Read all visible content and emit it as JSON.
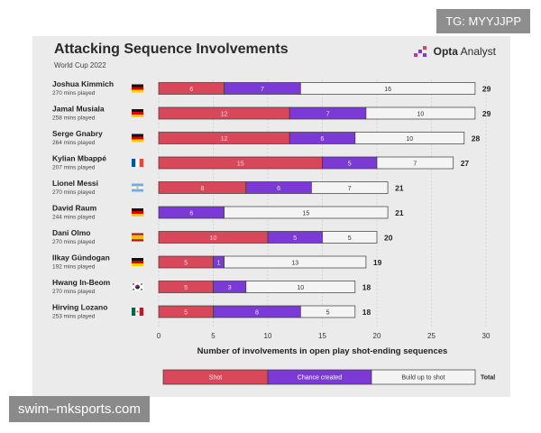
{
  "header": {
    "title": "Attacking Sequence Involvements",
    "subtitle": "World Cup 2022",
    "logo_bold": "Opta",
    "logo_text": " Analyst"
  },
  "watermarks": {
    "telegram": "TG: MYYJJPP",
    "site": "swim–mksports.com"
  },
  "chart_data": {
    "type": "bar",
    "orientation": "horizontal",
    "stacked": true,
    "title": "Attacking Sequence Involvements",
    "subtitle": "World Cup 2022",
    "xlabel": "Number of involvements in open play shot-ending sequences",
    "xlim": [
      0,
      30
    ],
    "xticks": [
      0,
      5,
      10,
      15,
      20,
      25,
      30
    ],
    "grid": true,
    "legend_position": "bottom",
    "legend_total_label": "Total",
    "categories": [
      "Joshua Kimmich",
      "Jamal Musiala",
      "Serge Gnabry",
      "Kylian Mbappé",
      "Lionel Messi",
      "David Raum",
      "Dani Olmo",
      "Ilkay Gündogan",
      "Hwang In-Beom",
      "Hirving Lozano"
    ],
    "minutes": [
      "270 mins played",
      "258 mins played",
      "264 mins played",
      "207 mins played",
      "270 mins played",
      "244 mins played",
      "270 mins played",
      "192 mins played",
      "270 mins played",
      "253 mins played"
    ],
    "flags": [
      "germany",
      "germany",
      "germany",
      "france",
      "argentina",
      "germany",
      "spain",
      "germany",
      "south-korea",
      "mexico"
    ],
    "totals": [
      29,
      29,
      28,
      27,
      21,
      21,
      20,
      19,
      18,
      18
    ],
    "series": [
      {
        "name": "Shot",
        "color": "#d9475a",
        "values": [
          6,
          12,
          12,
          15,
          8,
          0,
          10,
          5,
          5,
          5
        ]
      },
      {
        "name": "Chance created",
        "color": "#7b3ad6",
        "values": [
          7,
          7,
          6,
          5,
          6,
          6,
          5,
          1,
          3,
          8
        ]
      },
      {
        "name": "Build up to shot",
        "color": "#f4f4f4",
        "values": [
          16,
          10,
          10,
          7,
          7,
          15,
          5,
          13,
          10,
          5
        ]
      }
    ]
  }
}
